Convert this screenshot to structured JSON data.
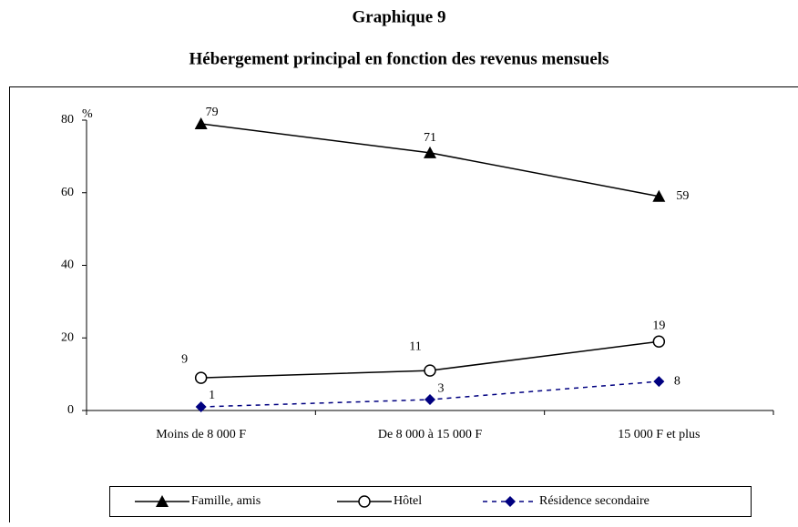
{
  "chart_data": {
    "type": "line",
    "title": "Graphique 9",
    "subtitle": "Hébergement principal en fonction des revenus mensuels",
    "y_label": "%",
    "categories": [
      "Moins de 8 000 F",
      "De 8 000 à 15 000 F",
      "15 000 F et plus"
    ],
    "series": [
      {
        "name": "Famille, amis",
        "color": "#000000",
        "marker": "triangle",
        "dash": false,
        "values": [
          79,
          71,
          59
        ]
      },
      {
        "name": "Hôtel",
        "color": "#000000",
        "marker": "circle",
        "dash": false,
        "values": [
          9,
          11,
          19
        ]
      },
      {
        "name": "Résidence secondaire",
        "color": "#000080",
        "marker": "diamond",
        "dash": true,
        "values": [
          1,
          3,
          8
        ]
      }
    ],
    "ylim": [
      0,
      80
    ],
    "yticks": [
      0,
      20,
      40,
      60,
      80
    ],
    "grid": false,
    "legend": "bottom"
  }
}
